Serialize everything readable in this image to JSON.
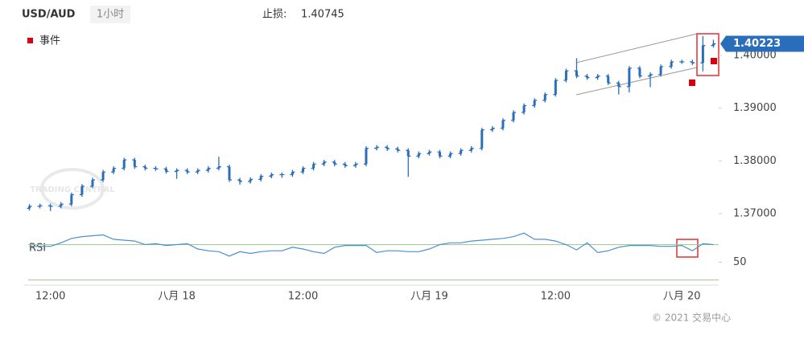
{
  "chart_data": {
    "type": "ohlc",
    "symbol": "USD/AUD",
    "timeframe": "1小时",
    "stop_loss_label": "止损:",
    "stop_loss": 1.40745,
    "legend": [
      {
        "name": "事件",
        "color": "#d9000d"
      }
    ],
    "watermark": "TRADING CENTRAL",
    "copyright": "© 2021 交易中心",
    "color": "#2a6ebb",
    "last_price": 1.40223,
    "categories": [
      null,
      null,
      "12:00",
      null,
      null,
      null,
      null,
      null,
      null,
      null,
      null,
      null,
      null,
      null,
      "八月 18",
      null,
      null,
      null,
      null,
      null,
      null,
      null,
      null,
      null,
      null,
      null,
      "12:00",
      null,
      null,
      null,
      null,
      null,
      null,
      null,
      null,
      null,
      null,
      null,
      "八月 19",
      null,
      null,
      null,
      null,
      null,
      null,
      null,
      null,
      null,
      null,
      null,
      "12:00",
      null,
      null,
      null,
      null,
      null,
      null,
      null,
      null,
      null,
      null,
      null,
      "八月 20",
      null,
      null,
      null
    ],
    "open": [
      1.371,
      1.3714,
      1.3715,
      1.3714,
      1.3718,
      1.3736,
      1.3752,
      1.3764,
      1.3779,
      1.3786,
      1.3802,
      1.3789,
      1.3786,
      1.3785,
      1.378,
      1.3782,
      1.3779,
      1.3782,
      1.3786,
      1.3789,
      1.3764,
      1.3761,
      1.3765,
      1.3771,
      1.3774,
      1.3774,
      1.3779,
      1.3786,
      1.3794,
      1.3798,
      1.3794,
      1.3791,
      1.3794,
      1.3824,
      1.3826,
      1.3823,
      1.382,
      1.3809,
      1.3814,
      1.3817,
      1.3809,
      1.3814,
      1.382,
      1.3824,
      1.3859,
      1.3862,
      1.3877,
      1.3892,
      1.3905,
      1.3915,
      1.3926,
      1.3953,
      1.3971,
      1.3961,
      1.3958,
      1.3961,
      1.3948,
      1.3941,
      1.3976,
      1.3961,
      1.3964,
      1.3979,
      1.3988,
      1.3988,
      1.3986,
      1.4019
    ],
    "high": [
      1.3718,
      1.3719,
      1.3719,
      1.3722,
      1.374,
      1.3756,
      1.3768,
      1.3783,
      1.379,
      1.3806,
      1.3806,
      1.3793,
      1.379,
      1.3789,
      1.3786,
      1.3786,
      1.3786,
      1.379,
      1.3808,
      1.3793,
      1.3768,
      1.3769,
      1.3775,
      1.3778,
      1.3778,
      1.3783,
      1.379,
      1.3798,
      1.3802,
      1.3802,
      1.3798,
      1.3798,
      1.3828,
      1.383,
      1.383,
      1.3827,
      1.3824,
      1.3818,
      1.3821,
      1.3821,
      1.3818,
      1.3824,
      1.3828,
      1.3863,
      1.3866,
      1.3881,
      1.3896,
      1.3909,
      1.3919,
      1.393,
      1.3957,
      1.3975,
      1.3995,
      1.3965,
      1.3965,
      1.3965,
      1.3952,
      1.398,
      1.398,
      1.3968,
      1.3983,
      1.3992,
      1.3992,
      1.3992,
      1.4037,
      1.403
    ],
    "low": [
      1.3706,
      1.371,
      1.3705,
      1.371,
      1.3714,
      1.3732,
      1.3748,
      1.376,
      1.3775,
      1.3782,
      1.3785,
      1.3782,
      1.3781,
      1.3776,
      1.3766,
      1.3775,
      1.3775,
      1.3778,
      1.3782,
      1.376,
      1.3755,
      1.3757,
      1.3761,
      1.3767,
      1.3768,
      1.377,
      1.3775,
      1.3782,
      1.379,
      1.379,
      1.3787,
      1.3787,
      1.379,
      1.382,
      1.3819,
      1.3816,
      1.377,
      1.3805,
      1.381,
      1.3805,
      1.3805,
      1.381,
      1.3816,
      1.382,
      1.3855,
      1.3858,
      1.3873,
      1.3888,
      1.3901,
      1.3911,
      1.3922,
      1.3949,
      1.3957,
      1.3954,
      1.3954,
      1.3944,
      1.3926,
      1.393,
      1.3957,
      1.394,
      1.396,
      1.3975,
      1.3984,
      1.3982,
      1.397,
      1.4015
    ],
    "close": [
      1.3714,
      1.3715,
      1.3714,
      1.3718,
      1.3736,
      1.3752,
      1.3764,
      1.3779,
      1.3786,
      1.3802,
      1.3789,
      1.3786,
      1.3785,
      1.378,
      1.3782,
      1.3779,
      1.3782,
      1.3786,
      1.3789,
      1.3764,
      1.3761,
      1.3765,
      1.3771,
      1.3774,
      1.3774,
      1.3779,
      1.3786,
      1.3794,
      1.3798,
      1.3794,
      1.3791,
      1.3794,
      1.3824,
      1.3826,
      1.3823,
      1.382,
      1.3809,
      1.3814,
      1.3817,
      1.3809,
      1.3814,
      1.382,
      1.3824,
      1.3859,
      1.3862,
      1.3877,
      1.3892,
      1.3905,
      1.3915,
      1.3926,
      1.3953,
      1.3971,
      1.3961,
      1.3958,
      1.3961,
      1.3948,
      1.3941,
      1.3976,
      1.3961,
      1.3964,
      1.3979,
      1.3988,
      1.3988,
      1.3986,
      1.4019,
      1.40223
    ],
    "ylim": [
      1.3671,
      1.4052
    ],
    "yticks": [
      {
        "value": 1.37,
        "label": "1.37000"
      },
      {
        "value": 1.38,
        "label": "1.38000"
      },
      {
        "value": 1.39,
        "label": "1.39000"
      },
      {
        "value": 1.4,
        "label": "1.40000"
      }
    ],
    "rsi": {
      "name": "RSI",
      "color": "#4a8fd4",
      "level_color": "#9ccf8c",
      "values": [
        68,
        68,
        68,
        72,
        77,
        79,
        80,
        81,
        76,
        75,
        74,
        70,
        71,
        69,
        70,
        71,
        65,
        63,
        62,
        57,
        62,
        60,
        62,
        63,
        63,
        67,
        65,
        62,
        60,
        67,
        69,
        69,
        69,
        61,
        63,
        63,
        62,
        62,
        65,
        70,
        72,
        72,
        74,
        75,
        76,
        77,
        79,
        83,
        76,
        76,
        74,
        70,
        64,
        72,
        61,
        63,
        67,
        69,
        69,
        69,
        68,
        68,
        69,
        63,
        71,
        70
      ],
      "ylim": [
        25,
        85
      ],
      "yticks": [
        50
      ],
      "levels": [
        70,
        30
      ]
    }
  }
}
